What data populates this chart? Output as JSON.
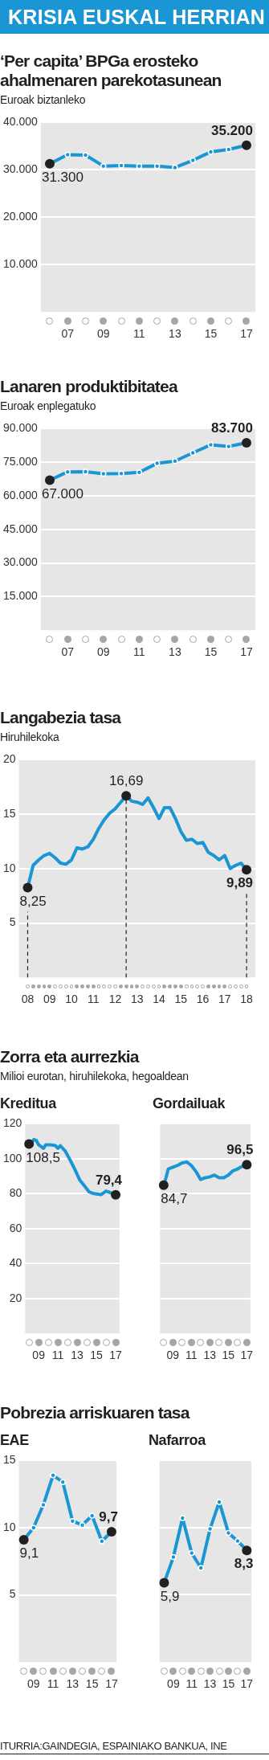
{
  "chart_data": [
    {
      "type": "other",
      "title": "KRISIA EUSKAL HERRIAN"
    },
    {
      "type": "line",
      "title": "‘Per capita’ BPGa erosteko ahalmenaren parekotasunean",
      "subtitle": "Euroak biztanleko",
      "categories": [
        null,
        "07",
        null,
        "09",
        null,
        "11",
        null,
        "13",
        null,
        "15",
        null,
        "17"
      ],
      "series": [
        {
          "color": "#1a96d4",
          "values": [
            31300,
            33200,
            33100,
            30800,
            30900,
            30800,
            30800,
            30500,
            32000,
            33800,
            34300,
            35200
          ],
          "value_labels": [
            "31.300",
            null,
            null,
            null,
            null,
            null,
            null,
            null,
            null,
            null,
            null,
            "35.200"
          ]
        }
      ],
      "ylim": [
        0,
        40000
      ],
      "yticks": [
        {
          "value": 10000,
          "label": "10.000"
        },
        {
          "value": 20000,
          "label": "20.000"
        },
        {
          "value": 30000,
          "label": "30.000"
        },
        {
          "value": 40000,
          "label": "40.000"
        }
      ],
      "grid": "y",
      "legend": false,
      "marker": "circle"
    },
    {
      "type": "line",
      "title": "Lanaren produktibitatea",
      "subtitle": "Euroak enplegatuko",
      "categories": [
        null,
        "07",
        null,
        "09",
        null,
        "11",
        null,
        "13",
        null,
        "15",
        null,
        "17"
      ],
      "series": [
        {
          "color": "#1a96d4",
          "values": [
            67000,
            70700,
            70800,
            69900,
            70000,
            70500,
            74500,
            75500,
            79200,
            82800,
            82100,
            83700
          ],
          "value_labels": [
            "67.000",
            null,
            null,
            null,
            null,
            null,
            null,
            null,
            null,
            null,
            null,
            "83.700"
          ]
        }
      ],
      "ylim": [
        0,
        90000
      ],
      "yticks": [
        {
          "value": 15000,
          "label": "15.000"
        },
        {
          "value": 30000,
          "label": "30.000"
        },
        {
          "value": 45000,
          "label": "45.000"
        },
        {
          "value": 60000,
          "label": "60.000"
        },
        {
          "value": 75000,
          "label": "75.000"
        },
        {
          "value": 90000,
          "label": "90.000"
        }
      ],
      "grid": "y",
      "legend": false,
      "marker": "circle"
    },
    {
      "type": "line",
      "title": "Langabezia tasa",
      "subtitle": "Hiruhilekoka",
      "x": [
        2008,
        2008.25,
        2008.5,
        2008.75,
        2009,
        2009.25,
        2009.5,
        2009.75,
        2010,
        2010.25,
        2010.5,
        2010.75,
        2011,
        2011.25,
        2011.5,
        2011.75,
        2012,
        2012.25,
        2012.5,
        2012.75,
        2013,
        2013.25,
        2013.5,
        2013.75,
        2014,
        2014.25,
        2014.5,
        2014.75,
        2015,
        2015.25,
        2015.5,
        2015.75,
        2016,
        2016.25,
        2016.5,
        2016.75,
        2017,
        2017.25,
        2017.5,
        2017.75,
        2018
      ],
      "series": [
        {
          "color": "#1a96d4",
          "values": [
            8.25,
            10.3,
            10.8,
            11.2,
            11.4,
            11.0,
            10.5,
            10.4,
            10.8,
            11.9,
            11.8,
            12.0,
            12.7,
            13.7,
            14.5,
            15.1,
            15.5,
            16.1,
            16.69,
            16.2,
            16.1,
            15.9,
            16.5,
            15.6,
            14.6,
            15.6,
            15.6,
            14.6,
            13.4,
            12.6,
            12.7,
            12.3,
            12.4,
            11.5,
            11.2,
            10.8,
            11.2,
            10.0,
            10.3,
            10.5,
            9.89
          ],
          "value_labels": [
            "8,25",
            null,
            null,
            null,
            null,
            null,
            null,
            null,
            null,
            null,
            null,
            null,
            null,
            null,
            null,
            null,
            null,
            null,
            "16,69",
            null,
            null,
            null,
            null,
            null,
            null,
            null,
            null,
            null,
            null,
            null,
            null,
            null,
            null,
            null,
            null,
            null,
            null,
            null,
            null,
            null,
            "9,89"
          ]
        }
      ],
      "xlim": [
        2007.6,
        2018.4
      ],
      "xticks": [
        {
          "value": 2008,
          "label": "08"
        },
        {
          "value": 2009,
          "label": "09"
        },
        {
          "value": 2010,
          "label": "10"
        },
        {
          "value": 2011,
          "label": "11"
        },
        {
          "value": 2012,
          "label": "12"
        },
        {
          "value": 2013,
          "label": "13"
        },
        {
          "value": 2014,
          "label": "14"
        },
        {
          "value": 2015,
          "label": "15"
        },
        {
          "value": 2016,
          "label": "16"
        },
        {
          "value": 2017,
          "label": "17"
        },
        {
          "value": 2018,
          "label": "18"
        }
      ],
      "ylim": [
        0,
        20
      ],
      "yticks": [
        5,
        10,
        15,
        20
      ],
      "grid": "y",
      "legend": false,
      "marker": "none",
      "ref_lines": [
        {
          "axis": "x",
          "value": 2008,
          "color": "#231f20",
          "line_style": "dashed"
        },
        {
          "axis": "x",
          "value": 2012.5,
          "color": "#231f20",
          "line_style": "dashed"
        },
        {
          "axis": "x",
          "value": 2018,
          "color": "#231f20",
          "line_style": "dashed"
        }
      ]
    },
    {
      "type": "other",
      "title": "Zorra eta aurrezkia",
      "subtitle": "Milioi eurotan, hiruhilekoka, hegoaldean"
    },
    {
      "type": "line",
      "title": "Kreditua",
      "x": [
        2008,
        2008.25,
        2008.5,
        2008.75,
        2009,
        2009.5,
        2009.75,
        2010.25,
        2010.75,
        2011,
        2011.25,
        2011.75,
        2012.25,
        2012.75,
        2013.25,
        2013.75,
        2014.25,
        2014.75,
        2015.5,
        2016,
        2016.5,
        2017
      ],
      "series": [
        {
          "color": "#1a96d4",
          "values": [
            108.5,
            109,
            111,
            110.5,
            108,
            106,
            108,
            108,
            107.5,
            106,
            107.5,
            104.5,
            99.5,
            94,
            88,
            84.5,
            81,
            80,
            79.5,
            81.5,
            80.5,
            79.4
          ],
          "value_labels": [
            "108,5",
            null,
            null,
            null,
            null,
            null,
            null,
            null,
            null,
            null,
            null,
            null,
            null,
            null,
            null,
            null,
            null,
            null,
            null,
            null,
            null,
            "79,4"
          ]
        }
      ],
      "xlim": [
        2007.6,
        2017.4
      ],
      "xticks": [
        {
          "value": 2009,
          "label": "09"
        },
        {
          "value": 2011,
          "label": "11"
        },
        {
          "value": 2013,
          "label": "13"
        },
        {
          "value": 2015,
          "label": "15"
        },
        {
          "value": 2017,
          "label": "17"
        }
      ],
      "ylim": [
        0,
        120
      ],
      "yticks": [
        20,
        40,
        60,
        80,
        100,
        120
      ],
      "grid": "y",
      "legend": false,
      "marker": "none"
    },
    {
      "type": "line",
      "title": "Gordailuak",
      "x": [
        2008,
        2008.25,
        2008.5,
        2009,
        2009.5,
        2010,
        2010.5,
        2011,
        2011.5,
        2012,
        2012.5,
        2013,
        2013.5,
        2014,
        2014.5,
        2015,
        2015.5,
        2016,
        2016.5,
        2017
      ],
      "series": [
        {
          "color": "#1a96d4",
          "values": [
            84.7,
            89,
            94,
            95,
            96,
            97.5,
            98,
            96,
            92.5,
            88,
            89,
            89.5,
            90.5,
            89,
            89,
            90.5,
            93,
            94,
            95.5,
            96.5
          ],
          "value_labels": [
            "84,7",
            null,
            null,
            null,
            null,
            null,
            null,
            null,
            null,
            null,
            null,
            null,
            null,
            null,
            null,
            null,
            null,
            null,
            null,
            "96,5"
          ]
        }
      ],
      "xlim": [
        2007.6,
        2017.4
      ],
      "xticks": [
        {
          "value": 2009,
          "label": "09"
        },
        {
          "value": 2011,
          "label": "11"
        },
        {
          "value": 2013,
          "label": "13"
        },
        {
          "value": 2015,
          "label": "15"
        },
        {
          "value": 2017,
          "label": "17"
        }
      ],
      "ylim": [
        0,
        120
      ],
      "yticks": [
        20,
        40,
        60,
        80,
        100,
        120
      ],
      "tick_labels": "x",
      "grid": "y",
      "legend": false,
      "marker": "none"
    },
    {
      "type": "other",
      "title": "Pobrezia arriskuaren tasa"
    },
    {
      "type": "line",
      "title": "EAE",
      "categories": [
        null,
        "09",
        null,
        "11",
        null,
        "13",
        null,
        "15",
        null,
        "17"
      ],
      "series": [
        {
          "color": "#1a96d4",
          "values": [
            9.1,
            10.0,
            11.7,
            13.9,
            13.4,
            10.5,
            10.2,
            10.9,
            9.0,
            9.7
          ],
          "value_labels": [
            "9,1",
            null,
            null,
            null,
            null,
            null,
            null,
            null,
            null,
            "9,7"
          ]
        }
      ],
      "ylim": [
        0,
        15
      ],
      "yticks": [
        5,
        10,
        15
      ],
      "grid": "y",
      "legend": false,
      "marker": "circle"
    },
    {
      "type": "line",
      "title": "Nafarroa",
      "categories": [
        null,
        "09",
        null,
        "11",
        null,
        "13",
        null,
        "15",
        null,
        "17"
      ],
      "series": [
        {
          "color": "#1a96d4",
          "values": [
            5.9,
            7.8,
            10.7,
            8.1,
            7.0,
            9.9,
            11.9,
            9.6,
            9.0,
            8.3
          ],
          "value_labels": [
            "5,9",
            null,
            null,
            null,
            null,
            null,
            null,
            null,
            null,
            "8,3"
          ]
        }
      ],
      "ylim": [
        0,
        15
      ],
      "yticks": [
        5,
        10,
        15
      ],
      "tick_labels": "x",
      "grid": "y",
      "legend": false,
      "marker": "circle"
    },
    {
      "type": "other",
      "annotations": [
        "ITURRIA:GAINDEGIA, ESPAINIAKO BANKUA, INE"
      ]
    }
  ]
}
